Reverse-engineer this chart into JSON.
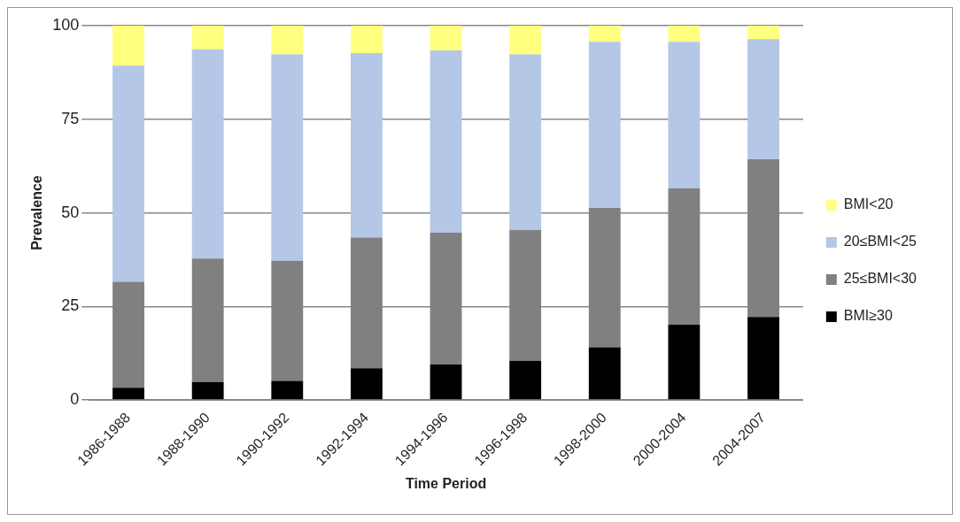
{
  "chart_data": {
    "type": "bar",
    "stacked": true,
    "xlabel": "Time Period",
    "ylabel": "Prevalence",
    "categories": [
      "1986-1988",
      "1988-1990",
      "1990-1992",
      "1992-1994",
      "1994-1996",
      "1996-1998",
      "1998-2000",
      "2000-2004",
      "2004-2007"
    ],
    "series": [
      {
        "name": "BMI≥30",
        "color": "#000000",
        "values": [
          3.3,
          4.8,
          5.1,
          8.5,
          9.5,
          10.5,
          14.1,
          20.1,
          22.2
        ]
      },
      {
        "name": "25≤BMI<30",
        "color": "#808080",
        "values": [
          28.3,
          33.0,
          32.1,
          34.9,
          35.2,
          34.9,
          37.2,
          36.5,
          42.1
        ]
      },
      {
        "name": "20≤BMI<25",
        "color": "#b4c7e7",
        "values": [
          57.7,
          55.9,
          55.1,
          49.3,
          48.7,
          46.9,
          44.4,
          39.1,
          32.1
        ]
      },
      {
        "name": "BMI<20",
        "color": "#ffff80",
        "values": [
          10.7,
          6.3,
          7.7,
          7.3,
          6.6,
          7.7,
          4.3,
          4.3,
          3.6
        ]
      }
    ],
    "ylim": [
      0,
      100
    ],
    "yticks": [
      0,
      25,
      50,
      75,
      100
    ],
    "grid": "y",
    "legend": "right"
  }
}
